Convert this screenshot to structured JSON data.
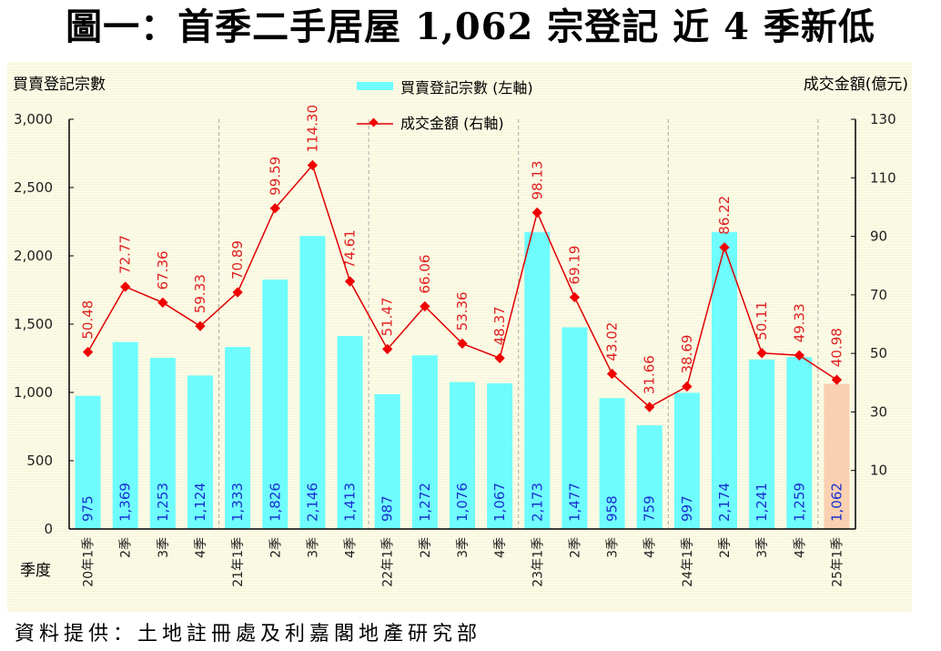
{
  "title": "圖一：首季二手居屋 1,062 宗登記  近 4 季新低",
  "source": "資料提供：土地註冊處及利嘉閣地產研究部",
  "colors": {
    "bar": "#6EFCFC",
    "bar_highlight": "#F9D0B0",
    "line": "#E00000",
    "marker": "#F00000",
    "line_label": "#E02020",
    "highlight_label": "#1A2FD0",
    "bar_label": "#1A2FD0"
  },
  "chart_data": {
    "type": "bar+line",
    "title": "圖一：首季二手居屋 1,062 宗登記  近 4 季新低",
    "xlabel": "季度",
    "ylabel_left": "買賣登記宗數",
    "ylabel_right": "成交金額(億元)",
    "ylim_left": [
      0,
      3000
    ],
    "ylim_right": [
      -10,
      130
    ],
    "yticks_left": [
      "0",
      "500",
      "1,000",
      "1,500",
      "2,000",
      "2,500",
      "3,000"
    ],
    "yticks_left_values": [
      0,
      500,
      1000,
      1500,
      2000,
      2500,
      3000
    ],
    "yticks_right": [
      "10",
      "30",
      "50",
      "70",
      "90",
      "110",
      "130"
    ],
    "yticks_right_values": [
      10,
      30,
      50,
      70,
      90,
      110,
      130
    ],
    "grid": "dashed vertical separators between years",
    "legend_position": "top-center",
    "categories": [
      "20年1季",
      "2季",
      "3季",
      "4季",
      "21年1季",
      "2季",
      "3季",
      "4季",
      "22年1季",
      "2季",
      "3季",
      "4季",
      "23年1季",
      "2季",
      "3季",
      "4季",
      "24年1季",
      "2季",
      "3季",
      "4季",
      "25年1季"
    ],
    "year_breaks_after_index": [
      3,
      7,
      11,
      15,
      19
    ],
    "highlight_index": 20,
    "series": [
      {
        "name": "買賣登記宗數 (左軸)",
        "type": "bar",
        "axis": "left",
        "values": [
          975,
          1369,
          1253,
          1124,
          1333,
          1826,
          2146,
          1413,
          987,
          1272,
          1076,
          1067,
          2173,
          1477,
          958,
          759,
          997,
          2174,
          1241,
          1259,
          1062
        ],
        "labels": [
          "975",
          "1,369",
          "1,253",
          "1,124",
          "1,333",
          "1,826",
          "2,146",
          "1,413",
          "987",
          "1,272",
          "1,076",
          "1,067",
          "2,173",
          "1,477",
          "958",
          "759",
          "997",
          "2,174",
          "1,241",
          "1,259",
          "1,062"
        ]
      },
      {
        "name": "成交金額 (右軸)",
        "type": "line",
        "axis": "right",
        "values": [
          50.48,
          72.77,
          67.36,
          59.33,
          70.89,
          99.59,
          114.3,
          74.61,
          51.47,
          66.06,
          53.36,
          48.37,
          98.13,
          69.19,
          43.02,
          31.66,
          38.69,
          86.22,
          50.11,
          49.33,
          40.98
        ],
        "labels": [
          "50.48",
          "72.77",
          "67.36",
          "59.33",
          "70.89",
          "99.59",
          "114.30",
          "74.61",
          "51.47",
          "66.06",
          "53.36",
          "48.37",
          "98.13",
          "69.19",
          "43.02",
          "31.66",
          "38.69",
          "86.22",
          "50.11",
          "49.33",
          "40.98"
        ]
      }
    ]
  }
}
